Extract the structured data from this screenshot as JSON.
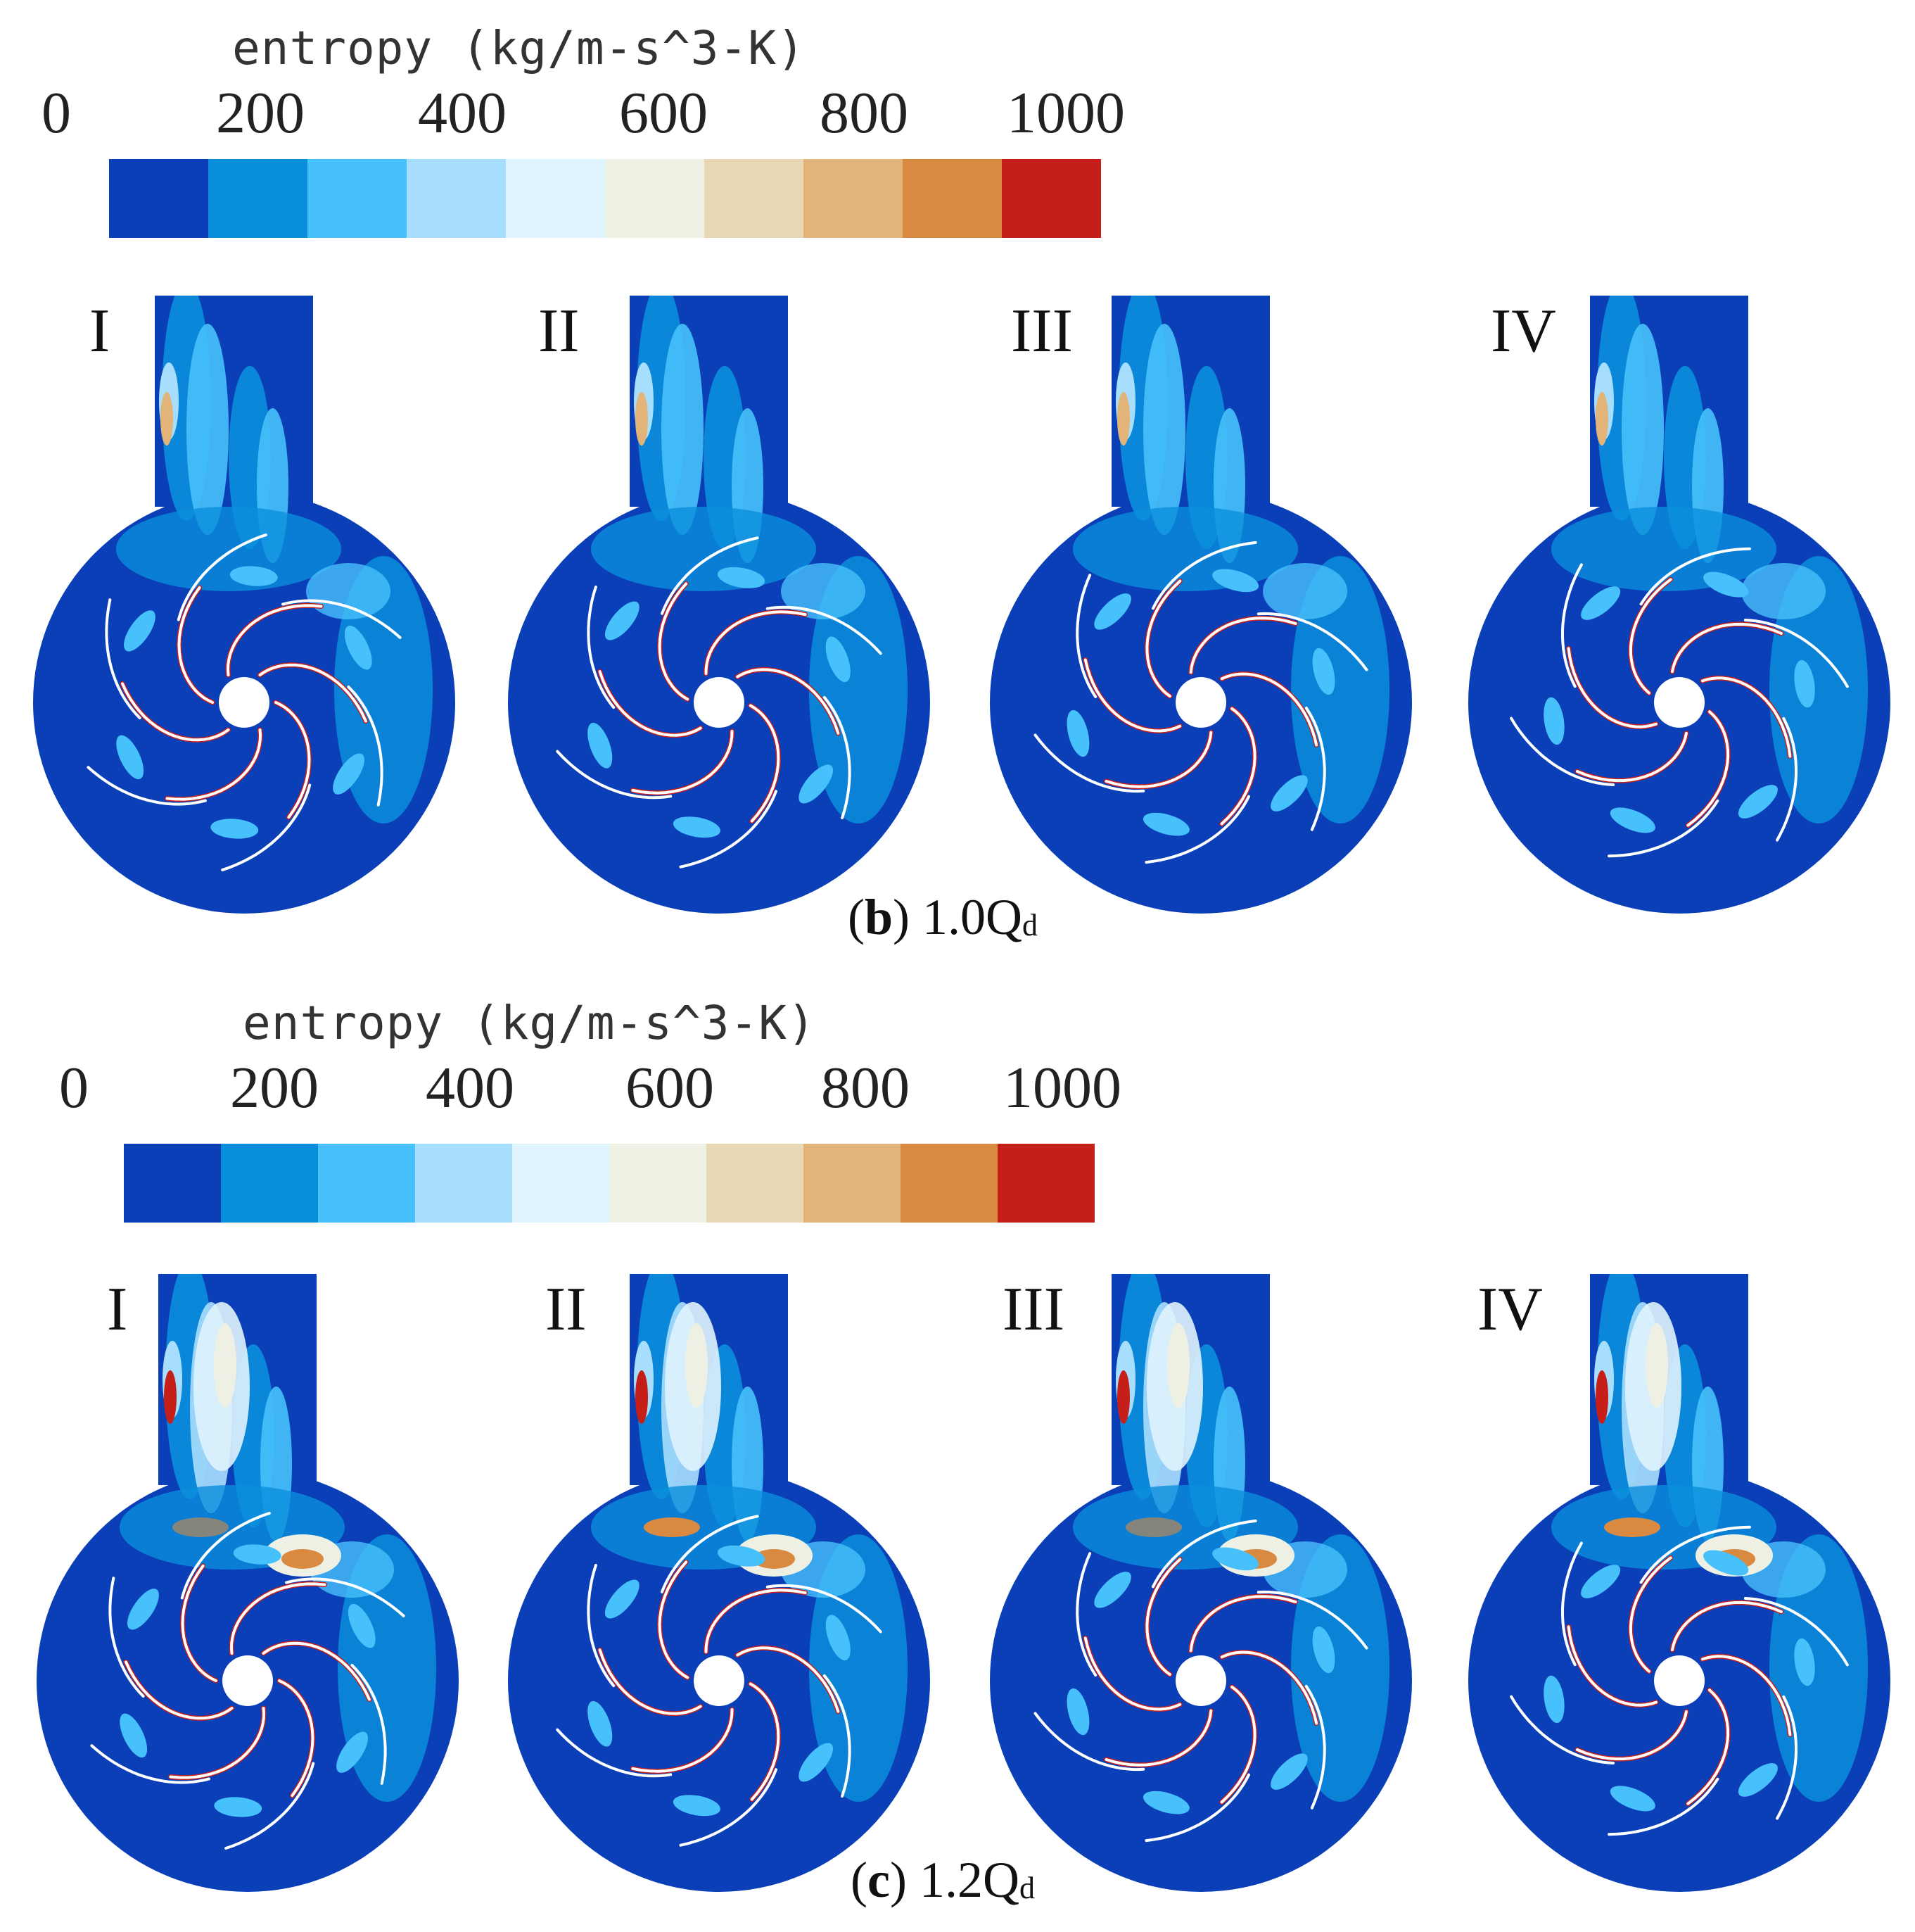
{
  "colors": {
    "scale": [
      "#0b3fb8",
      "#0a8fdc",
      "#47c1fb",
      "#a8defd",
      "#dff3fd",
      "#eef0e4",
      "#e8d8b6",
      "#e3b47a",
      "#d98a40",
      "#c61f1a"
    ],
    "background_field": "#0b3fb8",
    "blade": "#ffffff",
    "hub": "#ffffff"
  },
  "colorbar": {
    "title": "entropy  (kg/m-s^3-K)",
    "ticks": [
      "0",
      "200",
      "400",
      "600",
      "800",
      "1000"
    ],
    "range": [
      0,
      1000
    ]
  },
  "panels": [
    {
      "label": "b",
      "caption_value": "1.0Q",
      "caption_sub": "d",
      "cases": [
        "I",
        "II",
        "III",
        "IV"
      ],
      "high_entropy_level": 0.45
    },
    {
      "label": "c",
      "caption_value": "1.2Q",
      "caption_sub": "d",
      "cases": [
        "I",
        "II",
        "III",
        "IV"
      ],
      "high_entropy_level": 0.85
    }
  ]
}
